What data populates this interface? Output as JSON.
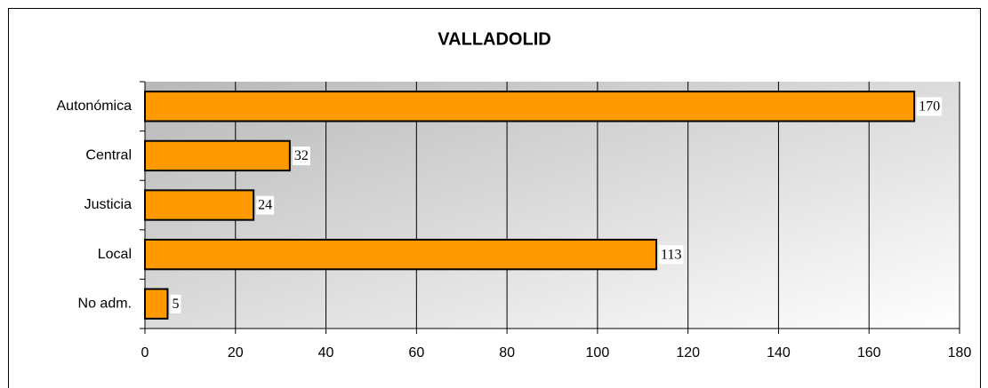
{
  "chart_data": {
    "type": "barh",
    "title": "VALLADOLID",
    "categories": [
      "Autonómica",
      "Central",
      "Justicia",
      "Local",
      "No adm."
    ],
    "values": [
      170,
      32,
      24,
      113,
      5
    ],
    "color": "#ff9900",
    "xlim": [
      0,
      180
    ],
    "xticks": [
      0,
      20,
      40,
      60,
      80,
      100,
      120,
      140,
      160,
      180
    ],
    "grid": true
  }
}
